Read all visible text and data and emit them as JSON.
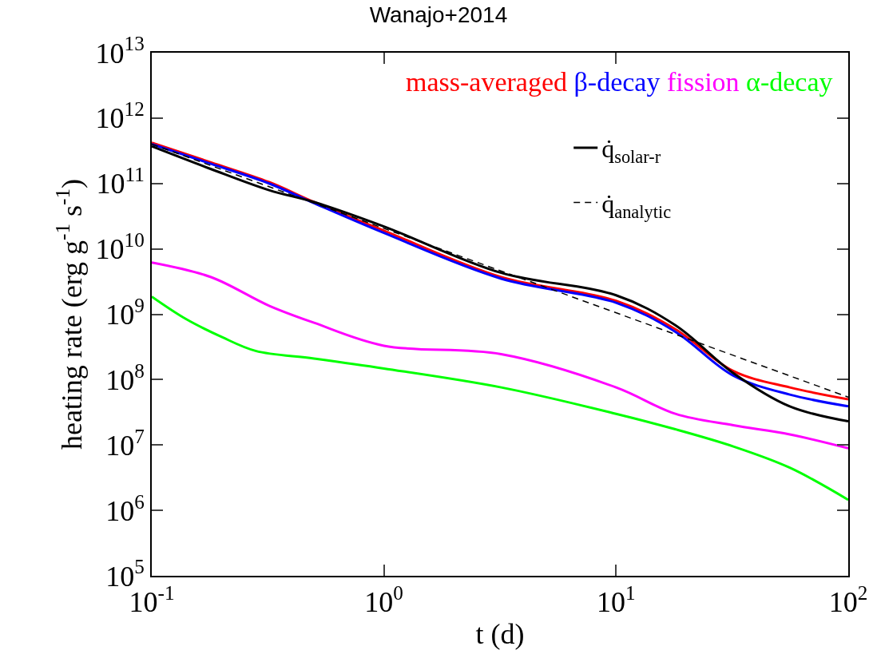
{
  "chart_data": {
    "type": "line",
    "title": "Wanajo+2014",
    "xlabel": "t (d)",
    "ylabel": "heating rate (erg g$^{-1}$ s$^{-1}$)",
    "log": "xy",
    "grid": false,
    "legend": "top right",
    "xlim": [
      0.1,
      100
    ],
    "xticks": [
      {
        "value": 0.1,
        "label": "10$^{-1}$"
      },
      {
        "value": 1,
        "label": "10$^{0}$"
      },
      {
        "value": 10,
        "label": "10$^{1}$"
      },
      {
        "value": 100,
        "label": "10$^{2}$"
      }
    ],
    "ylim": [
      100000.0,
      10000000000000.0
    ],
    "yticks": [
      {
        "value": 100000.0,
        "label": "10$^{5}$"
      },
      {
        "value": 1000000.0,
        "label": "10$^{6}$"
      },
      {
        "value": 10000000.0,
        "label": "10$^{7}$"
      },
      {
        "value": 100000000.0,
        "label": "10$^{8}$"
      },
      {
        "value": 1000000000.0,
        "label": "10$^{9}$"
      },
      {
        "value": 10000000000.0,
        "label": "10$^{10}$"
      },
      {
        "value": 100000000000.0,
        "label": "10$^{11}$"
      },
      {
        "value": 1000000000000.0,
        "label": "10$^{12}$"
      },
      {
        "value": 10000000000000.0,
        "label": "10$^{13}$"
      }
    ],
    "series": [
      {
        "name": "mass-averaged",
        "color": "#ff0000",
        "x": [
          0.1,
          0.18,
          0.32,
          0.5,
          1,
          3.2,
          10,
          18,
          32,
          56,
          100
        ],
        "values": [
          420000000000.0,
          210000000000.0,
          105000000000.0,
          52000000000.0,
          19000000000.0,
          3700000000.0,
          1600000000.0,
          590000000.0,
          135000000.0,
          76000000.0,
          50000000.0
        ]
      },
      {
        "name": "β-decay",
        "color": "#0000ff",
        "x": [
          0.1,
          0.18,
          0.32,
          0.5,
          1,
          3.2,
          10,
          18,
          32,
          56,
          100
        ],
        "values": [
          400000000000.0,
          200000000000.0,
          100000000000.0,
          50000000000.0,
          17500000000.0,
          3500000000.0,
          1500000000.0,
          540000000.0,
          115000000.0,
          59000000.0,
          39000000.0
        ]
      },
      {
        "name": "fission",
        "color": "#ff00ff",
        "x": [
          0.1,
          0.18,
          0.32,
          0.5,
          1,
          3.2,
          10,
          18,
          32,
          56,
          100
        ],
        "values": [
          6200000000.0,
          3700000000.0,
          1350000000.0,
          740000000.0,
          330000000.0,
          245000000.0,
          76000000.0,
          30000000.0,
          20000000.0,
          14500000.0,
          8900000.0
        ]
      },
      {
        "name": "α-decay",
        "color": "#00ff00",
        "x": [
          0.1,
          0.14,
          0.2,
          0.28,
          0.5,
          1,
          3.2,
          10,
          18,
          32,
          56,
          100
        ],
        "values": [
          1860000000.0,
          850000000.0,
          450000000.0,
          275000000.0,
          210000000.0,
          148000000.0,
          76000000.0,
          30000000.0,
          17400000.0,
          9500000.0,
          4500000.0,
          1450000.0
        ]
      },
      {
        "name": "q̇$_{solar-r}$",
        "color": "#000000",
        "x": [
          0.1,
          0.18,
          0.32,
          0.5,
          1,
          3.2,
          10,
          18,
          32,
          56,
          100
        ],
        "values": [
          370000000000.0,
          166000000000.0,
          79000000000.0,
          52000000000.0,
          22000000000.0,
          4300000000.0,
          1950000000.0,
          680000000.0,
          126000000.0,
          39000000.0,
          23000000.0
        ]
      },
      {
        "name": "q̇$_{analytic}$",
        "color": "#000000",
        "line_style": "dashed",
        "x": [
          0.1,
          100
        ],
        "values": [
          400000000000.0,
          54000000.0
        ]
      }
    ]
  }
}
